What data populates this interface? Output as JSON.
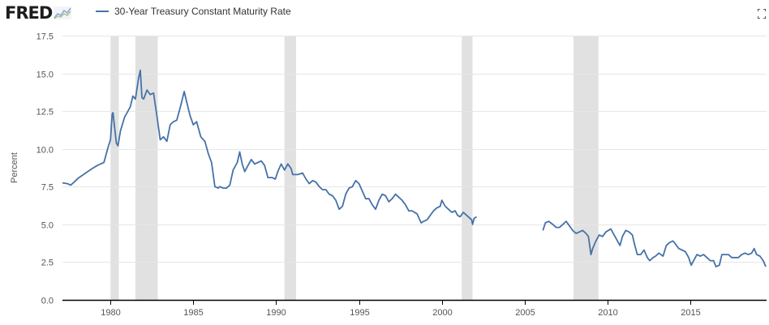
{
  "header": {
    "logo_text": "FRED",
    "logo_icon": "chart-line-icon",
    "fullscreen_icon": "fullscreen-icon"
  },
  "chart_data": {
    "type": "line",
    "title": "",
    "xlabel": "",
    "ylabel": "Percent",
    "xlim": [
      1977.1,
      2019.6
    ],
    "ylim": [
      0,
      17.5
    ],
    "yticks": [
      0.0,
      2.5,
      5.0,
      7.5,
      10.0,
      12.5,
      15.0,
      17.5
    ],
    "ytick_labels": [
      "0.0",
      "2.5",
      "5.0",
      "7.5",
      "10.0",
      "12.5",
      "15.0",
      "17.5"
    ],
    "xticks": [
      1980,
      1985,
      1990,
      1995,
      2000,
      2005,
      2010,
      2015
    ],
    "xtick_labels": [
      "1980",
      "1985",
      "1990",
      "1995",
      "2000",
      "2005",
      "2010",
      "2015"
    ],
    "grid": true,
    "legend": "top-left",
    "colors": {
      "line": "#4572a7",
      "recession": "#e1e1e1",
      "grid": "#e6e6e6",
      "axis": "#000000"
    },
    "recessions": [
      [
        1980.0,
        1980.5
      ],
      [
        1981.5,
        1982.85
      ],
      [
        1990.5,
        1991.2
      ],
      [
        2001.2,
        2001.85
      ],
      [
        2007.95,
        2009.45
      ]
    ],
    "series": [
      {
        "name": "30-Year Treasury Constant Maturity Rate",
        "segments": [
          [
            [
              1977.1,
              7.75
            ],
            [
              1977.4,
              7.7
            ],
            [
              1977.6,
              7.6
            ],
            [
              1977.8,
              7.8
            ],
            [
              1978.1,
              8.1
            ],
            [
              1978.5,
              8.4
            ],
            [
              1978.9,
              8.7
            ],
            [
              1979.2,
              8.9
            ],
            [
              1979.6,
              9.1
            ],
            [
              1979.85,
              10.1
            ],
            [
              1980.0,
              10.6
            ],
            [
              1980.1,
              12.3
            ],
            [
              1980.15,
              12.4
            ],
            [
              1980.35,
              10.4
            ],
            [
              1980.45,
              10.2
            ],
            [
              1980.6,
              11.2
            ],
            [
              1980.85,
              12.1
            ],
            [
              1981.0,
              12.4
            ],
            [
              1981.2,
              12.8
            ],
            [
              1981.35,
              13.5
            ],
            [
              1981.5,
              13.3
            ],
            [
              1981.7,
              14.7
            ],
            [
              1981.8,
              15.2
            ],
            [
              1981.9,
              13.4
            ],
            [
              1982.0,
              13.3
            ],
            [
              1982.2,
              13.9
            ],
            [
              1982.4,
              13.6
            ],
            [
              1982.6,
              13.7
            ],
            [
              1982.8,
              12.2
            ],
            [
              1983.0,
              10.6
            ],
            [
              1983.2,
              10.8
            ],
            [
              1983.4,
              10.5
            ],
            [
              1983.6,
              11.6
            ],
            [
              1983.8,
              11.8
            ],
            [
              1984.0,
              11.9
            ],
            [
              1984.2,
              12.7
            ],
            [
              1984.45,
              13.8
            ],
            [
              1984.6,
              13.1
            ],
            [
              1984.8,
              12.2
            ],
            [
              1985.0,
              11.6
            ],
            [
              1985.2,
              11.8
            ],
            [
              1985.45,
              10.8
            ],
            [
              1985.7,
              10.5
            ],
            [
              1985.9,
              9.7
            ],
            [
              1986.1,
              9.1
            ],
            [
              1986.3,
              7.5
            ],
            [
              1986.5,
              7.4
            ],
            [
              1986.6,
              7.5
            ],
            [
              1986.8,
              7.4
            ],
            [
              1987.0,
              7.4
            ],
            [
              1987.2,
              7.6
            ],
            [
              1987.4,
              8.6
            ],
            [
              1987.65,
              9.1
            ],
            [
              1987.8,
              9.8
            ],
            [
              1987.95,
              9.0
            ],
            [
              1988.1,
              8.5
            ],
            [
              1988.3,
              8.9
            ],
            [
              1988.5,
              9.3
            ],
            [
              1988.7,
              9.0
            ],
            [
              1988.9,
              9.1
            ],
            [
              1989.1,
              9.2
            ],
            [
              1989.3,
              8.9
            ],
            [
              1989.5,
              8.1
            ],
            [
              1989.75,
              8.1
            ],
            [
              1989.95,
              8.0
            ],
            [
              1990.1,
              8.5
            ],
            [
              1990.3,
              9.0
            ],
            [
              1990.5,
              8.6
            ],
            [
              1990.7,
              9.0
            ],
            [
              1990.9,
              8.7
            ],
            [
              1991.0,
              8.3
            ],
            [
              1991.3,
              8.3
            ],
            [
              1991.6,
              8.4
            ],
            [
              1991.8,
              8.0
            ],
            [
              1992.0,
              7.7
            ],
            [
              1992.2,
              7.9
            ],
            [
              1992.4,
              7.8
            ],
            [
              1992.6,
              7.5
            ],
            [
              1992.8,
              7.3
            ],
            [
              1993.0,
              7.3
            ],
            [
              1993.2,
              7.0
            ],
            [
              1993.4,
              6.9
            ],
            [
              1993.6,
              6.6
            ],
            [
              1993.8,
              6.0
            ],
            [
              1994.0,
              6.2
            ],
            [
              1994.2,
              7.0
            ],
            [
              1994.4,
              7.4
            ],
            [
              1994.6,
              7.5
            ],
            [
              1994.8,
              7.9
            ],
            [
              1995.0,
              7.7
            ],
            [
              1995.2,
              7.2
            ],
            [
              1995.4,
              6.7
            ],
            [
              1995.6,
              6.7
            ],
            [
              1995.8,
              6.3
            ],
            [
              1996.0,
              6.0
            ],
            [
              1996.2,
              6.6
            ],
            [
              1996.4,
              7.0
            ],
            [
              1996.6,
              6.9
            ],
            [
              1996.8,
              6.5
            ],
            [
              1997.0,
              6.7
            ],
            [
              1997.2,
              7.0
            ],
            [
              1997.4,
              6.8
            ],
            [
              1997.6,
              6.6
            ],
            [
              1997.8,
              6.3
            ],
            [
              1998.0,
              5.9
            ],
            [
              1998.2,
              5.9
            ],
            [
              1998.5,
              5.7
            ],
            [
              1998.75,
              5.1
            ],
            [
              1998.9,
              5.2
            ],
            [
              1999.1,
              5.3
            ],
            [
              1999.3,
              5.6
            ],
            [
              1999.5,
              5.9
            ],
            [
              1999.7,
              6.1
            ],
            [
              1999.9,
              6.2
            ],
            [
              2000.0,
              6.6
            ],
            [
              2000.2,
              6.2
            ],
            [
              2000.4,
              6.0
            ],
            [
              2000.6,
              5.8
            ],
            [
              2000.8,
              5.9
            ],
            [
              2000.95,
              5.6
            ],
            [
              2001.1,
              5.5
            ],
            [
              2001.3,
              5.8
            ],
            [
              2001.5,
              5.6
            ],
            [
              2001.8,
              5.3
            ],
            [
              2001.85,
              5.0
            ],
            [
              2001.95,
              5.4
            ],
            [
              2002.1,
              5.5
            ]
          ],
          [
            [
              2006.1,
              4.6
            ],
            [
              2006.25,
              5.1
            ],
            [
              2006.45,
              5.2
            ],
            [
              2006.7,
              5.0
            ],
            [
              2006.9,
              4.8
            ],
            [
              2007.1,
              4.8
            ],
            [
              2007.3,
              5.0
            ],
            [
              2007.5,
              5.2
            ],
            [
              2007.7,
              4.9
            ],
            [
              2007.9,
              4.6
            ],
            [
              2008.1,
              4.4
            ],
            [
              2008.3,
              4.5
            ],
            [
              2008.5,
              4.6
            ],
            [
              2008.7,
              4.4
            ],
            [
              2008.85,
              4.2
            ],
            [
              2009.0,
              3.0
            ],
            [
              2009.1,
              3.4
            ],
            [
              2009.3,
              3.9
            ],
            [
              2009.5,
              4.3
            ],
            [
              2009.7,
              4.2
            ],
            [
              2009.9,
              4.5
            ],
            [
              2010.05,
              4.6
            ],
            [
              2010.2,
              4.7
            ],
            [
              2010.4,
              4.3
            ],
            [
              2010.6,
              3.9
            ],
            [
              2010.75,
              3.6
            ],
            [
              2010.9,
              4.2
            ],
            [
              2011.1,
              4.6
            ],
            [
              2011.3,
              4.5
            ],
            [
              2011.5,
              4.3
            ],
            [
              2011.65,
              3.6
            ],
            [
              2011.8,
              3.0
            ],
            [
              2012.0,
              3.0
            ],
            [
              2012.2,
              3.3
            ],
            [
              2012.4,
              2.8
            ],
            [
              2012.55,
              2.6
            ],
            [
              2012.75,
              2.8
            ],
            [
              2012.9,
              2.9
            ],
            [
              2013.1,
              3.1
            ],
            [
              2013.35,
              2.9
            ],
            [
              2013.55,
              3.6
            ],
            [
              2013.75,
              3.8
            ],
            [
              2013.95,
              3.9
            ],
            [
              2014.1,
              3.7
            ],
            [
              2014.3,
              3.4
            ],
            [
              2014.5,
              3.3
            ],
            [
              2014.7,
              3.2
            ],
            [
              2014.9,
              2.8
            ],
            [
              2015.05,
              2.3
            ],
            [
              2015.2,
              2.6
            ],
            [
              2015.4,
              3.0
            ],
            [
              2015.6,
              2.9
            ],
            [
              2015.8,
              3.0
            ],
            [
              2016.0,
              2.8
            ],
            [
              2016.2,
              2.6
            ],
            [
              2016.4,
              2.6
            ],
            [
              2016.55,
              2.2
            ],
            [
              2016.75,
              2.3
            ],
            [
              2016.9,
              3.0
            ],
            [
              2017.1,
              3.0
            ],
            [
              2017.3,
              3.0
            ],
            [
              2017.5,
              2.8
            ],
            [
              2017.7,
              2.8
            ],
            [
              2017.9,
              2.8
            ],
            [
              2018.1,
              3.0
            ],
            [
              2018.3,
              3.1
            ],
            [
              2018.5,
              3.0
            ],
            [
              2018.7,
              3.1
            ],
            [
              2018.85,
              3.4
            ],
            [
              2019.0,
              3.0
            ],
            [
              2019.2,
              2.9
            ],
            [
              2019.4,
              2.6
            ],
            [
              2019.55,
              2.2
            ]
          ]
        ]
      }
    ]
  }
}
